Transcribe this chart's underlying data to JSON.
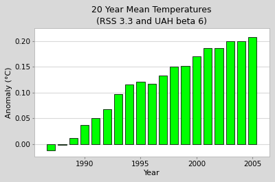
{
  "years": [
    1987,
    1988,
    1989,
    1990,
    1991,
    1992,
    1993,
    1994,
    1995,
    1996,
    1997,
    1998,
    1999,
    2000,
    2001,
    2002,
    2003,
    2004,
    2005
  ],
  "values": [
    -0.012,
    -0.002,
    0.011,
    0.037,
    0.05,
    0.067,
    0.097,
    0.115,
    0.121,
    0.117,
    0.133,
    0.15,
    0.152,
    0.17,
    0.186,
    0.186,
    0.199,
    0.199,
    0.208
  ],
  "bar_color": "#00FF00",
  "bar_edge_color": "#111111",
  "title_line1": "20 Year Mean Temperatures",
  "title_line2": "(RSS 3.3 and UAH beta 6)",
  "xlabel": "Year",
  "ylabel": "Anomaly (°C)",
  "xlim": [
    1985.5,
    2006.5
  ],
  "ylim": [
    -0.025,
    0.225
  ],
  "yticks": [
    0.0,
    0.05,
    0.1,
    0.15,
    0.2
  ],
  "xticks": [
    1990,
    1995,
    2000,
    2005
  ],
  "outer_background": "#D9D9D9",
  "plot_background": "#FFFFFF",
  "grid_color": "#D9D9D9",
  "title_fontsize": 9,
  "axis_label_fontsize": 8,
  "tick_fontsize": 7.5,
  "bar_width": 0.75
}
